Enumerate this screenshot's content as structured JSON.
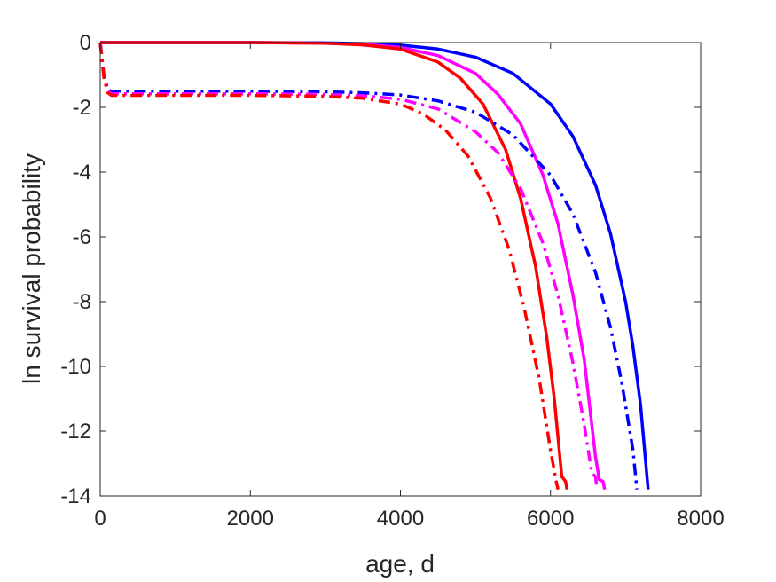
{
  "chart_data": {
    "type": "line",
    "title": "",
    "xlabel": "age, d",
    "ylabel": "ln survival probability",
    "xlim": [
      0,
      8000
    ],
    "ylim": [
      -14,
      0
    ],
    "xticks": [
      0,
      2000,
      4000,
      6000,
      8000
    ],
    "yticks": [
      0,
      -2,
      -4,
      -6,
      -8,
      -10,
      -12,
      -14
    ],
    "xtick_labels": [
      "0",
      "2000",
      "4000",
      "6000",
      "8000"
    ],
    "ytick_labels": [
      "0",
      "-2",
      "-4",
      "-6",
      "-8",
      "-10",
      "-12",
      "-14"
    ],
    "grid": false,
    "legend": "none",
    "series": [
      {
        "color": "#0000ff",
        "style": "solid",
        "x": [
          0,
          1000,
          2000,
          3000,
          3500,
          4000,
          4500,
          5000,
          5500,
          6000,
          6300,
          6600,
          6800,
          7000,
          7100,
          7200,
          7300
        ],
        "y": [
          0,
          0,
          0,
          -0.01,
          -0.03,
          -0.08,
          -0.2,
          -0.45,
          -0.95,
          -1.9,
          -2.9,
          -4.4,
          -5.9,
          -8.0,
          -9.4,
          -11.2,
          -13.8
        ]
      },
      {
        "color": "#ff00ff",
        "style": "solid",
        "x": [
          0,
          1000,
          2000,
          3000,
          3500,
          4000,
          4500,
          5000,
          5300,
          5600,
          5900,
          6100,
          6300,
          6450,
          6600,
          6650,
          6700,
          6720
        ],
        "y": [
          0,
          0,
          0,
          -0.02,
          -0.05,
          -0.15,
          -0.4,
          -0.95,
          -1.6,
          -2.5,
          -4.1,
          -5.6,
          -7.8,
          -9.8,
          -12.8,
          -13.5,
          -13.55,
          -13.8
        ]
      },
      {
        "color": "#ff0000",
        "style": "solid",
        "x": [
          0,
          1000,
          2000,
          3000,
          3500,
          4000,
          4500,
          4800,
          5100,
          5400,
          5600,
          5800,
          5950,
          6050,
          6150,
          6200,
          6220
        ],
        "y": [
          0,
          0,
          0,
          -0.02,
          -0.07,
          -0.2,
          -0.6,
          -1.1,
          -1.9,
          -3.3,
          -4.8,
          -6.9,
          -9.1,
          -11.0,
          -13.4,
          -13.55,
          -13.8
        ]
      },
      {
        "color": "#0000ff",
        "style": "dashdot",
        "x": [
          0,
          50,
          100,
          150,
          500,
          1000,
          2000,
          3000,
          3500,
          4000,
          4500,
          5000,
          5500,
          6000,
          6300,
          6600,
          6800,
          6950,
          7100,
          7150
        ],
        "y": [
          0,
          -1.0,
          -1.45,
          -1.5,
          -1.5,
          -1.5,
          -1.5,
          -1.52,
          -1.55,
          -1.62,
          -1.8,
          -2.15,
          -2.85,
          -4.1,
          -5.3,
          -7.1,
          -8.8,
          -10.5,
          -12.6,
          -13.8
        ]
      },
      {
        "color": "#ff00ff",
        "style": "dashdot",
        "x": [
          0,
          50,
          100,
          150,
          500,
          1000,
          2000,
          3000,
          3500,
          4000,
          4500,
          5000,
          5300,
          5600,
          5900,
          6100,
          6300,
          6450,
          6550,
          6600,
          6620
        ],
        "y": [
          0,
          -1.05,
          -1.5,
          -1.58,
          -1.58,
          -1.58,
          -1.58,
          -1.6,
          -1.64,
          -1.75,
          -2.05,
          -2.75,
          -3.4,
          -4.5,
          -6.2,
          -7.8,
          -9.9,
          -11.8,
          -13.3,
          -13.4,
          -13.8
        ]
      },
      {
        "color": "#ff0000",
        "style": "dashdot",
        "x": [
          0,
          50,
          100,
          150,
          500,
          1000,
          2000,
          3000,
          3500,
          4000,
          4300,
          4600,
          4900,
          5200,
          5450,
          5650,
          5850,
          6000,
          6080,
          6100
        ],
        "y": [
          0,
          -1.1,
          -1.55,
          -1.63,
          -1.63,
          -1.63,
          -1.63,
          -1.66,
          -1.72,
          -1.9,
          -2.2,
          -2.7,
          -3.5,
          -4.8,
          -6.4,
          -8.2,
          -10.4,
          -12.6,
          -13.6,
          -13.8
        ]
      }
    ]
  }
}
